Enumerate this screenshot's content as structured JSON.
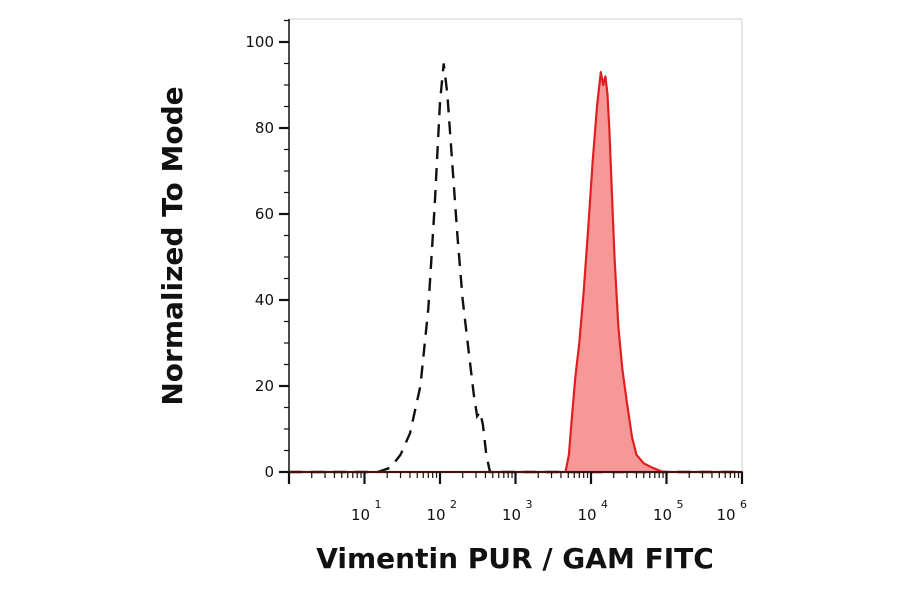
{
  "chart_data": {
    "type": "area",
    "title": "",
    "xlabel": "Vimentin PUR / GAM FITC",
    "ylabel": "Normalized To Mode",
    "x_scale": "log",
    "xlim": [
      1,
      1000000
    ],
    "ylim": [
      0,
      105
    ],
    "y_ticks": [
      "0",
      "20",
      "40",
      "60",
      "80",
      "100"
    ],
    "x_ticks": [
      {
        "base": "10",
        "exp": "1"
      },
      {
        "base": "10",
        "exp": "2"
      },
      {
        "base": "10",
        "exp": "3"
      },
      {
        "base": "10",
        "exp": "4"
      },
      {
        "base": "10",
        "exp": "5"
      },
      {
        "base": "10",
        "exp": "6"
      }
    ],
    "grid": false,
    "legend": "none",
    "series": [
      {
        "style": "dashed-outline",
        "color": "#111111",
        "x": [
          1,
          15,
          22,
          30,
          40,
          55,
          70,
          85,
          100,
          112,
          125,
          145,
          170,
          200,
          240,
          280,
          310,
          340,
          370,
          410,
          460,
          1000,
          3000,
          10000,
          100000,
          1000000
        ],
        "y": [
          0,
          0,
          1,
          4,
          9,
          20,
          38,
          62,
          86,
          95,
          88,
          72,
          55,
          40,
          28,
          18,
          13,
          14,
          11,
          4,
          0,
          0,
          0,
          0,
          0,
          0
        ]
      },
      {
        "style": "filled",
        "color": "#e02020",
        "fill": "#f79898",
        "x": [
          1,
          4600,
          5100,
          5600,
          6200,
          7000,
          8000,
          9200,
          10500,
          12000,
          13500,
          14500,
          15500,
          16500,
          17500,
          18800,
          20500,
          23000,
          26000,
          30000,
          35000,
          40000,
          50000,
          65000,
          90000,
          130000,
          1000000
        ],
        "y": [
          0,
          0,
          4,
          13,
          22,
          30,
          42,
          57,
          72,
          85,
          93,
          90,
          92,
          88,
          80,
          66,
          50,
          34,
          24,
          16,
          8,
          4,
          2,
          1,
          0,
          0,
          0
        ]
      }
    ]
  }
}
